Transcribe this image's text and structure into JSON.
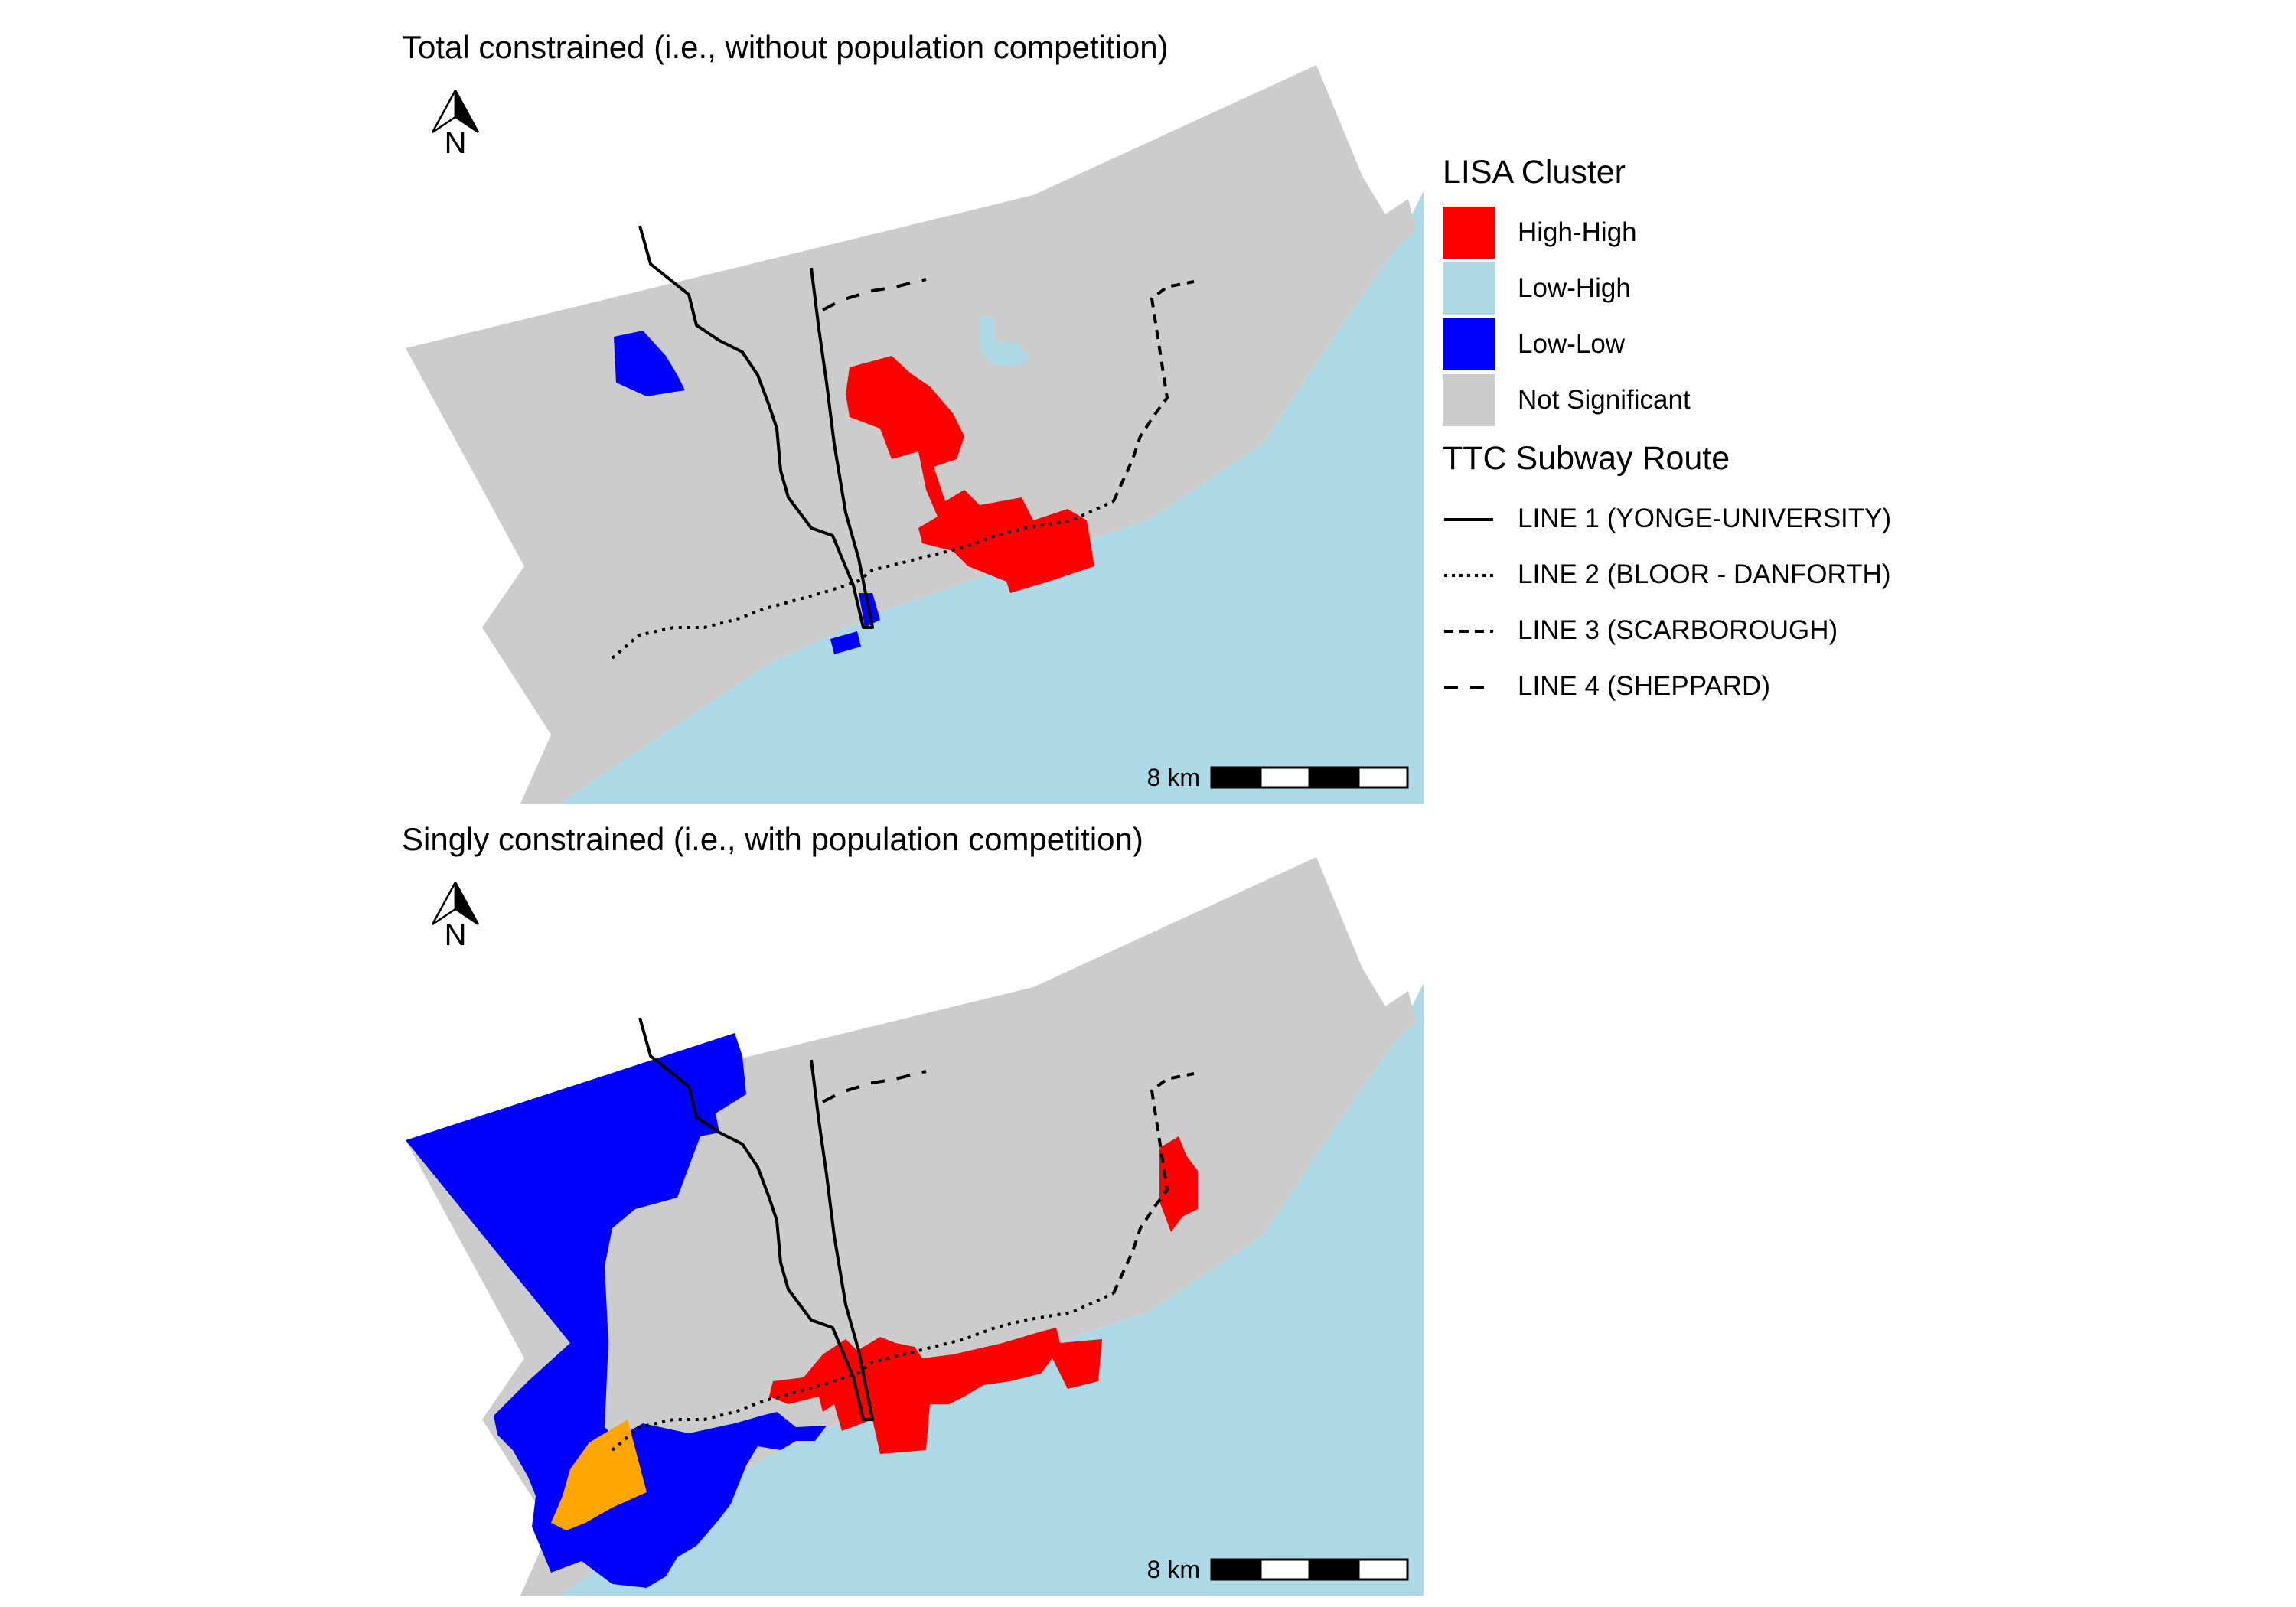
{
  "colors": {
    "high_high": "#FF0000",
    "low_high": "#ADD8E6",
    "low_low": "#0000FF",
    "not_significant": "#CCCCCC",
    "high_low": "#FFA500",
    "water": "#ADD8E6",
    "subway": "#000000"
  },
  "panels": [
    {
      "title": "Total constrained (i.e., without population competition)",
      "north_label": "N",
      "scalebar_label": "8 km"
    },
    {
      "title": "Singly constrained (i.e., with population competition)",
      "north_label": "N",
      "scalebar_label": "8 km"
    }
  ],
  "legend": {
    "lisa_title": "LISA Cluster",
    "lisa_items": [
      {
        "label": "High-High",
        "color": "#FF0000"
      },
      {
        "label": "Low-High",
        "color": "#ADD8E6"
      },
      {
        "label": "Low-Low",
        "color": "#0000FF"
      },
      {
        "label": "Not Significant",
        "color": "#CCCCCC"
      }
    ],
    "route_title": "TTC Subway Route",
    "route_items": [
      {
        "label": "LINE 1 (YONGE-UNIVERSITY)",
        "style": "solid"
      },
      {
        "label": "LINE 2 (BLOOR - DANFORTH)",
        "style": "dotted"
      },
      {
        "label": "LINE 3 (SCARBOROUGH)",
        "style": "dashed"
      },
      {
        "label": "LINE 4 (SHEPPARD)",
        "style": "longdash"
      }
    ]
  }
}
